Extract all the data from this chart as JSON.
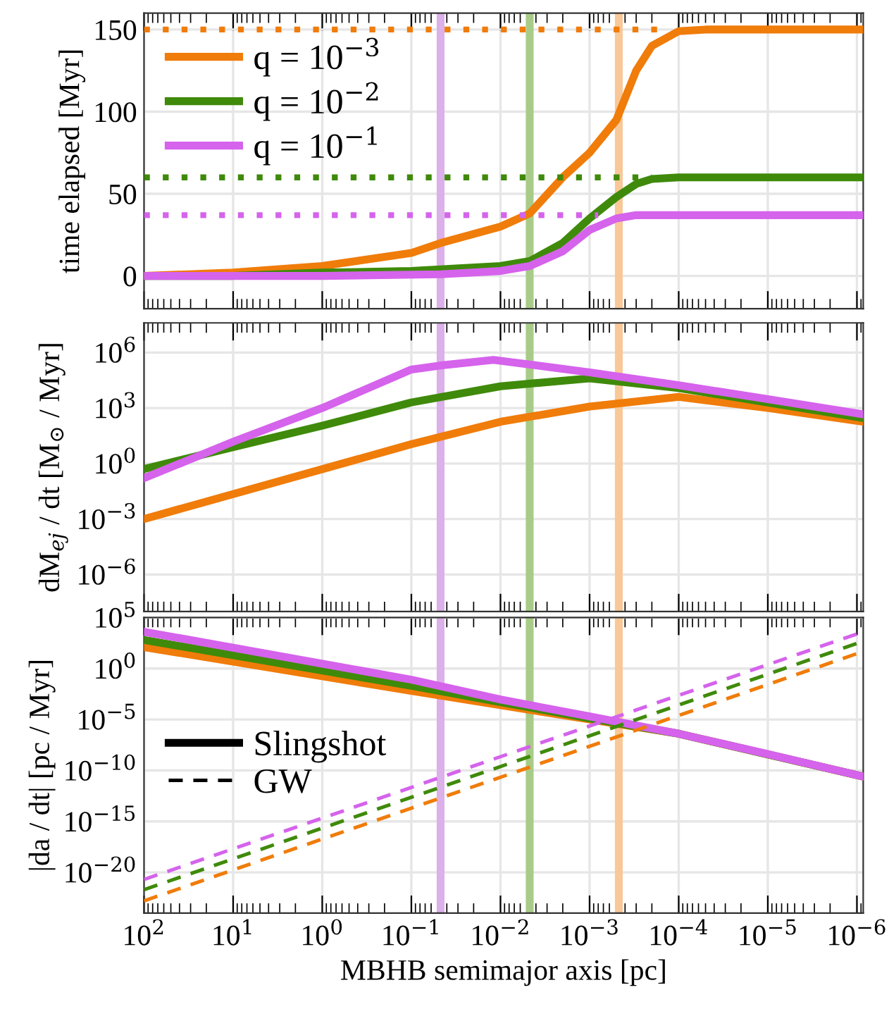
{
  "chart_data": [
    {
      "type": "line",
      "ylabel": "time elapsed [Myr]",
      "log": "x",
      "grid": true,
      "legend": "top left",
      "tick_labels": "y",
      "xlim": [
        100,
        8.5e-07
      ],
      "ylim": [
        -20,
        160
      ],
      "xticks": [
        {
          "value": 100,
          "label": null
        },
        {
          "value": 10,
          "label": null
        },
        {
          "value": 1,
          "label": null
        },
        {
          "value": 0.1,
          "label": null
        },
        {
          "value": 0.01,
          "label": null
        },
        {
          "value": 0.001,
          "label": null
        },
        {
          "value": 0.0001,
          "label": null
        },
        {
          "value": 1e-05,
          "label": null
        },
        {
          "value": 1e-06,
          "label": null
        }
      ],
      "yticks": [
        0,
        50,
        100,
        150
      ],
      "series": [
        {
          "name": "q = 10$^{−3}$",
          "color": "#f07c0a",
          "line_style": "solid",
          "x": [
            100,
            10,
            1,
            0.1,
            0.047,
            0.01,
            0.0047,
            0.002,
            0.001,
            0.0005,
            0.0003,
            0.0002,
            0.0001,
            5e-05,
            8.5e-07
          ],
          "values": [
            0,
            2,
            6,
            14,
            20,
            30,
            38,
            60,
            75,
            95,
            125,
            140,
            149,
            150,
            150
          ]
        },
        {
          "name": "q = 10$^{−2}$",
          "color": "#3f8a0a",
          "line_style": "solid",
          "x": [
            100,
            10,
            1,
            0.1,
            0.01,
            0.0047,
            0.002,
            0.001,
            0.0005,
            0.0003,
            0.0002,
            0.0001,
            8.5e-07
          ],
          "values": [
            0,
            0,
            2,
            3,
            6,
            9,
            20,
            35,
            48,
            56,
            59,
            60,
            60
          ]
        },
        {
          "name": "q = 10$^{−1}$",
          "color": "#d563ec",
          "line_style": "solid",
          "x": [
            100,
            1,
            0.047,
            0.01,
            0.0047,
            0.002,
            0.001,
            0.0005,
            0.0003,
            8.5e-07
          ],
          "values": [
            0,
            0,
            1,
            3,
            6,
            15,
            28,
            35,
            37,
            37
          ]
        },
        {
          "color": "#f07c0a",
          "line_style": "dotted",
          "x": [
            100,
            0.00014
          ],
          "values": [
            150,
            150
          ]
        },
        {
          "color": "#3f8a0a",
          "line_style": "dotted",
          "x": [
            100,
            0.0002
          ],
          "values": [
            60,
            60
          ]
        },
        {
          "color": "#d563ec",
          "line_style": "dotted",
          "x": [
            100,
            0.0008
          ],
          "values": [
            37,
            37
          ]
        }
      ],
      "ref_lines": [
        {
          "axis": "x",
          "value": 0.047,
          "color": "#dcb0e8"
        },
        {
          "axis": "x",
          "value": 0.0047,
          "color": "#a8cc88"
        },
        {
          "axis": "x",
          "value": 0.00047,
          "color": "#f8c898"
        }
      ]
    },
    {
      "type": "line",
      "ylabel": "dM$_{ej}$ / dt [M$_{⊙}$ / Myr]",
      "log": "xy",
      "grid": true,
      "tick_labels": "y",
      "xlim": [
        100,
        8.5e-07
      ],
      "ylim": [
        1e-08,
        40000000.0
      ],
      "xticks": [
        {
          "value": 100,
          "label": null
        },
        {
          "value": 10,
          "label": null
        },
        {
          "value": 1,
          "label": null
        },
        {
          "value": 0.1,
          "label": null
        },
        {
          "value": 0.01,
          "label": null
        },
        {
          "value": 0.001,
          "label": null
        },
        {
          "value": 0.0001,
          "label": null
        },
        {
          "value": 1e-05,
          "label": null
        },
        {
          "value": 1e-06,
          "label": null
        }
      ],
      "yticks": [
        {
          "value": 1e-06,
          "label": "10$^{−6}$"
        },
        {
          "value": 0.001,
          "label": "10$^{−3}$"
        },
        {
          "value": 1,
          "label": "10$^{0}$"
        },
        {
          "value": 1000,
          "label": "10$^{3}$"
        },
        {
          "value": 1000000,
          "label": "10$^{6}$"
        }
      ],
      "series": [
        {
          "color": "#f07c0a",
          "line_style": "solid",
          "x": [
            100,
            0.1,
            0.01,
            0.001,
            0.0001,
            1e-05,
            8.5e-07
          ],
          "values": [
            0.001,
            11,
            180,
            1200,
            4000,
            1000,
            180
          ]
        },
        {
          "color": "#3f8a0a",
          "line_style": "solid",
          "x": [
            100,
            10,
            1,
            0.1,
            0.01,
            0.001,
            0.0001,
            1e-05,
            8.5e-07
          ],
          "values": [
            0.5,
            7.6,
            110,
            2000,
            15000,
            40000,
            12000,
            2000,
            290
          ]
        },
        {
          "color": "#d563ec",
          "line_style": "solid",
          "x": [
            100,
            10,
            1,
            0.1,
            0.047,
            0.012,
            0.001,
            0.0001,
            1e-05,
            8.5e-07
          ],
          "values": [
            0.16,
            15,
            1000,
            120000,
            200000,
            400000,
            85000,
            17000,
            3000,
            450
          ]
        }
      ],
      "ref_lines": [
        {
          "axis": "x",
          "value": 0.047,
          "color": "#dcb0e8"
        },
        {
          "axis": "x",
          "value": 0.0047,
          "color": "#a8cc88"
        },
        {
          "axis": "x",
          "value": 0.00047,
          "color": "#f8c898"
        }
      ]
    },
    {
      "type": "line",
      "ylabel": "|da / dt| [pc / Myr]",
      "xlabel": "MBHB semimajor axis [pc]",
      "log": "xy",
      "grid": true,
      "legend": "left",
      "xlim": [
        100,
        8.5e-07
      ],
      "ylim": [
        1e-24,
        100000.0
      ],
      "xticks": [
        {
          "value": 100,
          "label": "10$^{2}$"
        },
        {
          "value": 10,
          "label": "10$^{1}$"
        },
        {
          "value": 1,
          "label": "10$^{0}$"
        },
        {
          "value": 0.1,
          "label": "10$^{−1}$"
        },
        {
          "value": 0.01,
          "label": "10$^{−2}$"
        },
        {
          "value": 0.001,
          "label": "10$^{−3}$"
        },
        {
          "value": 0.0001,
          "label": "10$^{−4}$"
        },
        {
          "value": 1e-05,
          "label": "10$^{−5}$"
        },
        {
          "value": 1e-06,
          "label": "10$^{−6}$"
        }
      ],
      "yticks": [
        {
          "value": 1e-20,
          "label": "10$^{−20}$"
        },
        {
          "value": 1e-15,
          "label": "10$^{−15}$"
        },
        {
          "value": 1e-10,
          "label": "10$^{−10}$"
        },
        {
          "value": 1e-05,
          "label": "10$^{−5}$"
        },
        {
          "value": 1,
          "label": "10$^{0}$"
        },
        {
          "value": 100000,
          "label": "10$^{5}$"
        }
      ],
      "series": [
        {
          "color": "#f07c0a",
          "line_style": "solid",
          "x": [
            100,
            0.1,
            0.01,
            0.001,
            0.0001,
            8.5e-07
          ],
          "values": [
            126,
            0.0063,
            0.00025,
            1e-05,
            4e-07,
            2.5e-11
          ]
        },
        {
          "color": "#3f8a0a",
          "line_style": "solid",
          "x": [
            100,
            0.1,
            0.01,
            0.001,
            0.0001,
            8.5e-07
          ],
          "values": [
            630,
            0.02,
            0.0005,
            1.3e-05,
            4e-07,
            2.5e-11
          ]
        },
        {
          "color": "#d563ec",
          "line_style": "solid",
          "x": [
            100,
            0.1,
            0.01,
            0.001,
            0.0001,
            1e-05,
            8.5e-07
          ],
          "values": [
            4000,
            0.08,
            0.0009,
            2e-05,
            4e-07,
            4e-09,
            2.5e-11
          ]
        },
        {
          "color": "#f07c0a",
          "line_style": "dashed",
          "x": [
            100,
            8.5e-07
          ],
          "values": [
            1.6e-23,
            47
          ]
        },
        {
          "color": "#3f8a0a",
          "line_style": "dashed",
          "x": [
            100,
            8.5e-07
          ],
          "values": [
            2e-22,
            470
          ]
        },
        {
          "color": "#d563ec",
          "line_style": "dashed",
          "x": [
            100,
            8.5e-07
          ],
          "values": [
            2e-21,
            4000
          ]
        },
        {
          "name": "Slingshot",
          "color": "#000000",
          "line_style": "solid"
        },
        {
          "name": "GW",
          "color": "#000000",
          "line_style": "dashed"
        }
      ],
      "ref_lines": [
        {
          "axis": "x",
          "value": 0.047,
          "color": "#dcb0e8"
        },
        {
          "axis": "x",
          "value": 0.0047,
          "color": "#a8cc88"
        },
        {
          "axis": "x",
          "value": 0.00047,
          "color": "#f8c898"
        }
      ]
    }
  ]
}
